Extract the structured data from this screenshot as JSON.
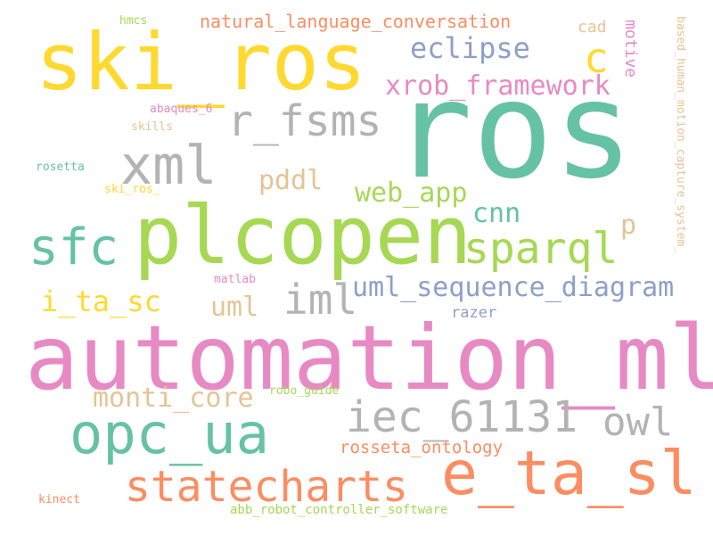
{
  "words": [
    {
      "text": "ros",
      "color": "#66c2a5"
    },
    {
      "text": "automation_ml",
      "color": "#e78ac3"
    },
    {
      "text": "ski_ros",
      "color": "#ffd92f"
    },
    {
      "text": "plcopen",
      "color": "#a6d854"
    },
    {
      "text": "e_ta_sl",
      "color": "#fc8d62"
    },
    {
      "text": "opc_ua",
      "color": "#66c2a5"
    },
    {
      "text": "xml",
      "color": "#b3b3b3"
    },
    {
      "text": "sfc",
      "color": "#66c2a5"
    },
    {
      "text": "statecharts",
      "color": "#fc8d62"
    },
    {
      "text": "iec_61131",
      "color": "#b3b3b3"
    },
    {
      "text": "r_fsms",
      "color": "#b3b3b3"
    },
    {
      "text": "sparql",
      "color": "#a6d854"
    },
    {
      "text": "owl",
      "color": "#b3b3b3"
    },
    {
      "text": "iml",
      "color": "#b3b3b3"
    },
    {
      "text": "c",
      "color": "#ffd92f"
    },
    {
      "text": "eclipse",
      "color": "#8da0cb"
    },
    {
      "text": "xrob_framework",
      "color": "#e78ac3"
    },
    {
      "text": "uml_sequence_diagram",
      "color": "#8da0cb"
    },
    {
      "text": "web_app",
      "color": "#a6d854"
    },
    {
      "text": "monti_core",
      "color": "#e5c494"
    },
    {
      "text": "i_ta_sc",
      "color": "#ffd92f"
    },
    {
      "text": "cnn",
      "color": "#66c2a5"
    },
    {
      "text": "pddl",
      "color": "#e5c494"
    },
    {
      "text": "uml",
      "color": "#e5c494"
    },
    {
      "text": "p",
      "color": "#e5c494"
    },
    {
      "text": "natural_language_conversation",
      "color": "#fc8d62"
    },
    {
      "text": "rosseta_ontology",
      "color": "#fc8d62"
    },
    {
      "text": "motive",
      "color": "#e78ac3"
    },
    {
      "text": "cad",
      "color": "#e5c494"
    },
    {
      "text": "razer",
      "color": "#8da0cb"
    },
    {
      "text": "based_human_motion_capture_system_",
      "color": "#e5c494"
    },
    {
      "text": "abb_robot_controller_software",
      "color": "#a6d854"
    },
    {
      "text": "robo_guide",
      "color": "#a6d854"
    },
    {
      "text": "abaques_6",
      "color": "#e78ac3"
    },
    {
      "text": "skills",
      "color": "#e5c494"
    },
    {
      "text": "hmcs",
      "color": "#a6d854"
    },
    {
      "text": "rosetta",
      "color": "#66c2a5"
    },
    {
      "text": "ski_ros_",
      "color": "#ffd92f"
    },
    {
      "text": "matlab",
      "color": "#e78ac3"
    },
    {
      "text": "kinect",
      "color": "#fc8d62"
    }
  ]
}
